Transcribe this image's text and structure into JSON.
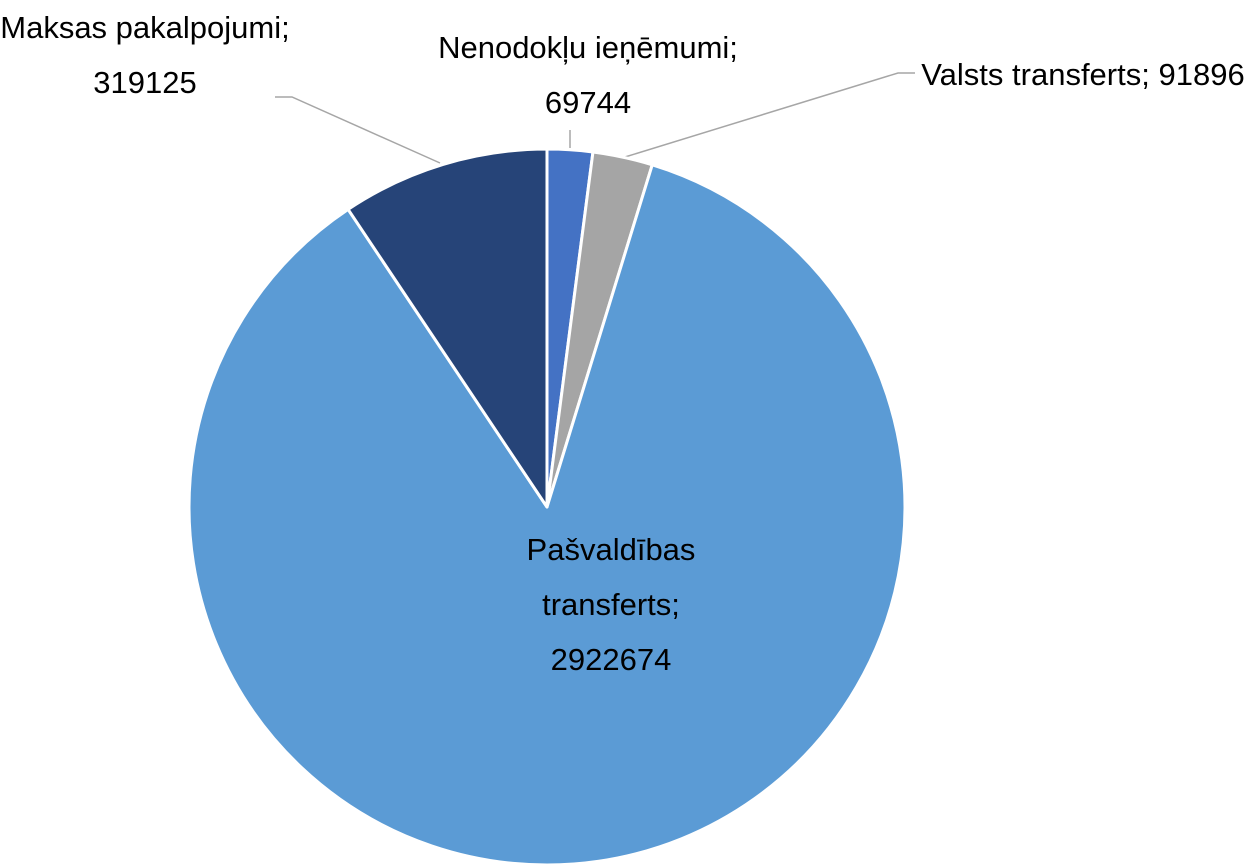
{
  "chart_data": {
    "type": "pie",
    "categories": [
      "Nenodokļu ieņēmumi",
      "Valsts transferts",
      "Pašvaldības transferts",
      "Maksas pakalpojumi"
    ],
    "values": [
      69744,
      91896,
      2922674,
      319125
    ],
    "colors": [
      "#4472c4",
      "#a5a5a5",
      "#5b9bd5",
      "#264478"
    ],
    "label_separator": ";"
  }
}
